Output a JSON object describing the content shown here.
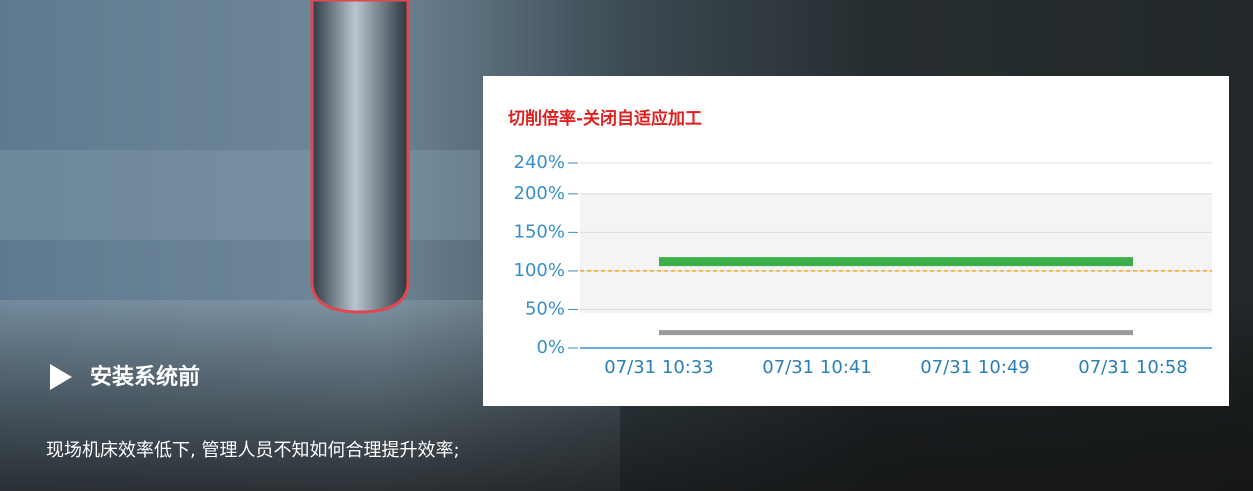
{
  "chart_data": {
    "type": "line",
    "title": "切削倍率-关闭自适应加工",
    "x": [
      "07/31 10:33",
      "07/31 10:41",
      "07/31 10:49",
      "07/31 10:58"
    ],
    "series": [
      {
        "color": "#3cae4a",
        "values": [
          112,
          112,
          112,
          112
        ]
      },
      {
        "color": "#9a9a9a",
        "values": [
          20,
          20,
          20,
          20
        ]
      }
    ],
    "reference_line": {
      "value": 100,
      "color": "#f5a623"
    },
    "ylim": [
      0,
      240
    ],
    "yticks": [
      {
        "value": 0,
        "label": "0%"
      },
      {
        "value": 50,
        "label": "50%"
      },
      {
        "value": 100,
        "label": "100%"
      },
      {
        "value": 150,
        "label": "150%"
      },
      {
        "value": 200,
        "label": "200%"
      },
      {
        "value": 240,
        "label": "240%"
      }
    ],
    "grid": true
  },
  "caption": {
    "heading": "安装系统前",
    "text": "现场机床效率低下, 管理人员不知如何合理提升效率;"
  }
}
